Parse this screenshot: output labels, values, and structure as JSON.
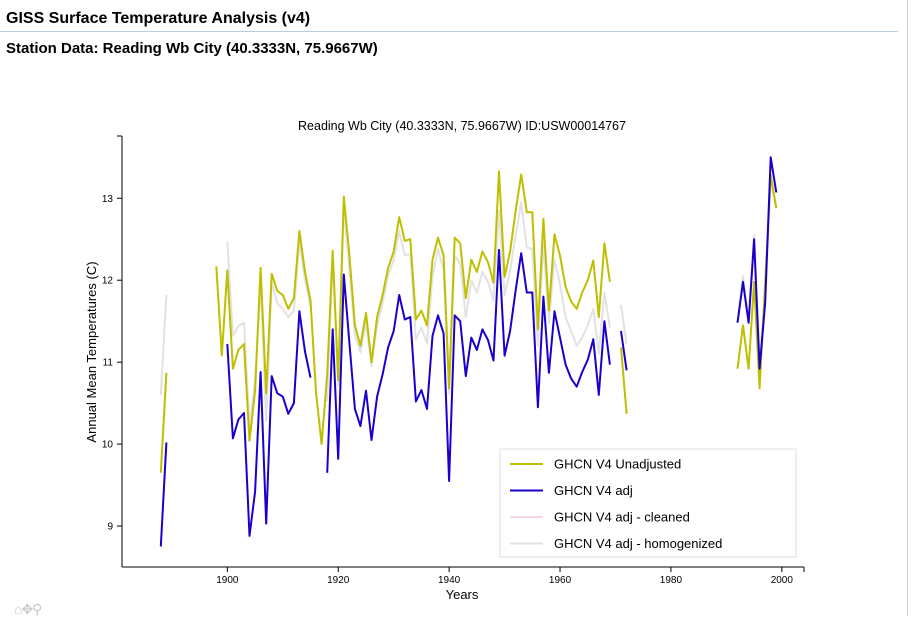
{
  "header": {
    "title": "GISS Surface Temperature Analysis (v4)",
    "subtitle": "Station Data: Reading Wb City (40.3333N, 75.9667W)"
  },
  "toolbar": {
    "home_icon": "home-icon",
    "pan_icon": "pan-icon",
    "zoom_icon": "zoom-icon",
    "glyphs": "⌂✥⚲"
  },
  "chart_data": {
    "type": "line",
    "title": "Reading Wb City (40.3333N, 75.9667W) ID:USW00014767",
    "xlabel": "Years",
    "ylabel": "Annual Mean Temperatures (C)",
    "xlim": [
      1881,
      2004
    ],
    "ylim": [
      8.5,
      13.76
    ],
    "xticks": [
      1900,
      1920,
      1940,
      1960,
      1980,
      2000
    ],
    "yticks": [
      9,
      10,
      11,
      12,
      13
    ],
    "grid": false,
    "legend_position": "bottom-right",
    "series": [
      {
        "name": "GHCN V4 Unadjusted",
        "color": "#bfbf00",
        "segments": [
          [
            [
              1888,
              9.65
            ],
            [
              1889,
              10.87
            ]
          ],
          [
            [
              1898,
              12.17
            ],
            [
              1899,
              11.08
            ],
            [
              1900,
              12.12
            ],
            [
              1901,
              10.92
            ],
            [
              1902,
              11.15
            ],
            [
              1903,
              11.22
            ],
            [
              1904,
              10.04
            ],
            [
              1905,
              10.65
            ],
            [
              1906,
              12.15
            ],
            [
              1907,
              10.62
            ],
            [
              1908,
              12.08
            ],
            [
              1909,
              11.87
            ],
            [
              1910,
              11.82
            ],
            [
              1911,
              11.65
            ],
            [
              1912,
              11.78
            ],
            [
              1913,
              12.6
            ],
            [
              1914,
              12.1
            ],
            [
              1915,
              11.75
            ],
            [
              1916,
              10.62
            ],
            [
              1917,
              10.0
            ],
            [
              1918,
              10.85
            ],
            [
              1919,
              12.36
            ],
            [
              1920,
              10.78
            ],
            [
              1921,
              13.02
            ],
            [
              1922,
              12.32
            ],
            [
              1923,
              11.45
            ],
            [
              1924,
              11.2
            ],
            [
              1925,
              11.6
            ],
            [
              1926,
              11.0
            ],
            [
              1927,
              11.55
            ],
            [
              1928,
              11.82
            ],
            [
              1929,
              12.15
            ],
            [
              1930,
              12.35
            ],
            [
              1931,
              12.77
            ],
            [
              1932,
              12.48
            ],
            [
              1933,
              12.5
            ],
            [
              1934,
              11.52
            ],
            [
              1935,
              11.63
            ],
            [
              1936,
              11.45
            ],
            [
              1937,
              12.25
            ],
            [
              1938,
              12.52
            ],
            [
              1939,
              12.3
            ],
            [
              1940,
              10.68
            ],
            [
              1941,
              12.52
            ],
            [
              1942,
              12.45
            ],
            [
              1943,
              11.78
            ],
            [
              1944,
              12.25
            ],
            [
              1945,
              12.1
            ],
            [
              1946,
              12.35
            ],
            [
              1947,
              12.22
            ],
            [
              1948,
              11.97
            ],
            [
              1949,
              13.33
            ],
            [
              1950,
              12.04
            ],
            [
              1951,
              12.35
            ],
            [
              1952,
              12.85
            ],
            [
              1953,
              13.29
            ],
            [
              1954,
              12.83
            ],
            [
              1955,
              12.83
            ],
            [
              1956,
              11.4
            ],
            [
              1957,
              12.75
            ],
            [
              1958,
              11.63
            ],
            [
              1959,
              12.56
            ],
            [
              1960,
              12.3
            ],
            [
              1961,
              11.92
            ],
            [
              1962,
              11.74
            ],
            [
              1963,
              11.65
            ],
            [
              1964,
              11.85
            ],
            [
              1965,
              12.0
            ],
            [
              1966,
              12.24
            ],
            [
              1967,
              11.55
            ],
            [
              1968,
              12.45
            ],
            [
              1969,
              11.98
            ]
          ],
          [
            [
              1971,
              11.18
            ],
            [
              1972,
              10.37
            ]
          ],
          [
            [
              1992,
              10.92
            ],
            [
              1993,
              11.45
            ],
            [
              1994,
              10.92
            ],
            [
              1995,
              11.98
            ],
            [
              1996,
              10.68
            ],
            [
              1997,
              11.98
            ],
            [
              1998,
              13.28
            ],
            [
              1999,
              12.88
            ]
          ]
        ]
      },
      {
        "name": "GHCN V4 adj",
        "color": "#1a00cc",
        "segments": [
          [
            [
              1888,
              8.75
            ],
            [
              1889,
              10.02
            ]
          ],
          [
            [
              1900,
              11.22
            ],
            [
              1901,
              10.07
            ],
            [
              1902,
              10.3
            ],
            [
              1903,
              10.38
            ],
            [
              1904,
              8.88
            ],
            [
              1905,
              9.42
            ],
            [
              1906,
              10.88
            ],
            [
              1907,
              9.03
            ],
            [
              1908,
              10.83
            ],
            [
              1909,
              10.62
            ],
            [
              1910,
              10.58
            ],
            [
              1911,
              10.37
            ],
            [
              1912,
              10.5
            ],
            [
              1913,
              11.62
            ],
            [
              1914,
              11.13
            ],
            [
              1915,
              10.81
            ]
          ],
          [
            [
              1918,
              9.65
            ],
            [
              1919,
              11.4
            ],
            [
              1920,
              9.82
            ],
            [
              1921,
              12.07
            ],
            [
              1922,
              11.25
            ],
            [
              1923,
              10.43
            ],
            [
              1924,
              10.22
            ],
            [
              1925,
              10.65
            ],
            [
              1926,
              10.05
            ],
            [
              1927,
              10.58
            ],
            [
              1928,
              10.85
            ],
            [
              1929,
              11.18
            ],
            [
              1930,
              11.38
            ],
            [
              1931,
              11.82
            ],
            [
              1932,
              11.52
            ],
            [
              1933,
              11.55
            ],
            [
              1934,
              10.52
            ],
            [
              1935,
              10.66
            ],
            [
              1936,
              10.43
            ],
            [
              1937,
              11.32
            ],
            [
              1938,
              11.57
            ],
            [
              1939,
              11.35
            ],
            [
              1940,
              9.55
            ],
            [
              1941,
              11.57
            ],
            [
              1942,
              11.5
            ],
            [
              1943,
              10.83
            ],
            [
              1944,
              11.3
            ],
            [
              1945,
              11.15
            ],
            [
              1946,
              11.4
            ],
            [
              1947,
              11.27
            ],
            [
              1948,
              11.02
            ],
            [
              1949,
              12.37
            ],
            [
              1950,
              11.08
            ],
            [
              1951,
              11.38
            ],
            [
              1952,
              11.88
            ],
            [
              1953,
              12.33
            ],
            [
              1954,
              11.85
            ],
            [
              1955,
              11.85
            ],
            [
              1956,
              10.45
            ],
            [
              1957,
              11.8
            ],
            [
              1958,
              10.87
            ],
            [
              1959,
              11.62
            ],
            [
              1960,
              11.3
            ],
            [
              1961,
              10.97
            ],
            [
              1962,
              10.8
            ],
            [
              1963,
              10.7
            ],
            [
              1964,
              10.88
            ],
            [
              1965,
              11.03
            ],
            [
              1966,
              11.28
            ],
            [
              1967,
              10.6
            ],
            [
              1968,
              11.5
            ],
            [
              1969,
              10.97
            ]
          ],
          [
            [
              1971,
              11.38
            ],
            [
              1972,
              10.9
            ]
          ],
          [
            [
              1992,
              11.48
            ],
            [
              1993,
              11.98
            ],
            [
              1994,
              11.48
            ],
            [
              1995,
              12.5
            ],
            [
              1996,
              10.92
            ],
            [
              1997,
              11.73
            ],
            [
              1998,
              13.5
            ],
            [
              1999,
              13.07
            ]
          ]
        ]
      },
      {
        "name": "GHCN V4 adj - cleaned",
        "color": "#f5d8de",
        "segments": []
      },
      {
        "name": "GHCN V4 adj - homogenized",
        "color": "#e2e2e2",
        "segments": [
          [
            [
              1888,
              10.6
            ],
            [
              1889,
              11.82
            ]
          ],
          [
            [
              1900,
              12.47
            ],
            [
              1901,
              11.32
            ],
            [
              1902,
              11.44
            ],
            [
              1903,
              11.48
            ],
            [
              1904,
              10.22
            ],
            [
              1905,
              10.78
            ],
            [
              1906,
              11.96
            ],
            [
              1907,
              10.28
            ],
            [
              1908,
              11.98
            ],
            [
              1909,
              11.72
            ],
            [
              1910,
              11.65
            ],
            [
              1911,
              11.55
            ],
            [
              1912,
              11.63
            ],
            [
              1913,
              12.47
            ],
            [
              1914,
              12.0
            ],
            [
              1915,
              11.68
            ]
          ],
          [
            [
              1918,
              10.52
            ],
            [
              1919,
              12.28
            ],
            [
              1920,
              10.72
            ],
            [
              1921,
              12.88
            ],
            [
              1922,
              12.15
            ],
            [
              1923,
              11.33
            ],
            [
              1924,
              11.12
            ],
            [
              1925,
              11.48
            ],
            [
              1926,
              10.95
            ],
            [
              1927,
              11.45
            ],
            [
              1928,
              11.72
            ],
            [
              1929,
              12.05
            ],
            [
              1930,
              12.25
            ],
            [
              1931,
              12.6
            ],
            [
              1932,
              12.3
            ],
            [
              1933,
              12.32
            ],
            [
              1934,
              11.28
            ],
            [
              1935,
              11.42
            ],
            [
              1936,
              11.23
            ],
            [
              1937,
              12.05
            ],
            [
              1938,
              12.38
            ],
            [
              1939,
              12.12
            ],
            [
              1940,
              10.62
            ],
            [
              1941,
              12.3
            ],
            [
              1942,
              12.2
            ],
            [
              1943,
              11.55
            ],
            [
              1944,
              12.0
            ],
            [
              1945,
              11.85
            ],
            [
              1946,
              12.1
            ],
            [
              1947,
              11.98
            ],
            [
              1948,
              11.75
            ],
            [
              1949,
              12.85
            ],
            [
              1950,
              11.82
            ],
            [
              1951,
              12.12
            ],
            [
              1952,
              12.55
            ],
            [
              1953,
              12.95
            ],
            [
              1954,
              12.4
            ],
            [
              1955,
              12.38
            ],
            [
              1956,
              11.2
            ],
            [
              1957,
              12.45
            ],
            [
              1958,
              11.48
            ],
            [
              1959,
              12.25
            ],
            [
              1960,
              11.95
            ],
            [
              1961,
              11.55
            ],
            [
              1962,
              11.38
            ],
            [
              1963,
              11.2
            ],
            [
              1964,
              11.3
            ],
            [
              1965,
              11.45
            ],
            [
              1966,
              11.65
            ],
            [
              1967,
              11.1
            ],
            [
              1968,
              11.85
            ],
            [
              1969,
              11.42
            ]
          ],
          [
            [
              1971,
              11.7
            ],
            [
              1972,
              11.22
            ]
          ],
          [
            [
              1992,
              11.5
            ],
            [
              1993,
              12.05
            ],
            [
              1994,
              11.52
            ],
            [
              1995,
              12.55
            ],
            [
              1996,
              11.0
            ],
            [
              1997,
              11.85
            ],
            [
              1998,
              13.2
            ],
            [
              1999,
              12.9
            ]
          ]
        ]
      }
    ]
  }
}
